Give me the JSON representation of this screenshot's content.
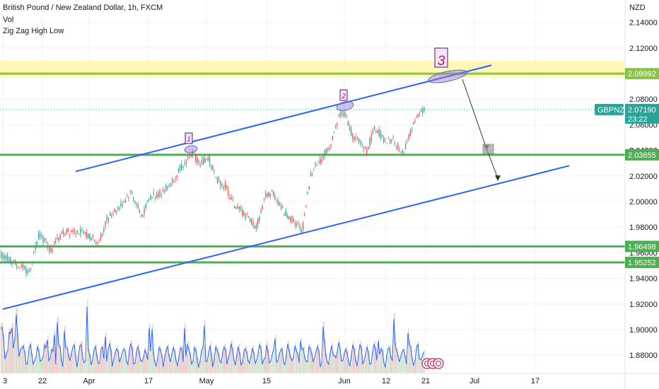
{
  "header": {
    "symbol_line": "British Pound / New Zealand Dollar, 1h, FXCM",
    "indicator_1": "Vol",
    "indicator_2": "Zig Zag High Low"
  },
  "chart_data": {
    "type": "candlestick",
    "title": "British Pound / New Zealand Dollar, 1h, FXCM",
    "currency": "NZD",
    "ylim": [
      1.868,
      2.158
    ],
    "y_ticks": [
      "2.14000",
      "2.12000",
      "2.10000",
      "2.08000",
      "2.06000",
      "2.04000",
      "2.02000",
      "2.00000",
      "1.98000",
      "1.96000",
      "1.94000",
      "1.92000",
      "1.90000",
      "1.88000"
    ],
    "x_ticks": [
      "3",
      "22",
      "Apr",
      "17",
      "May",
      "15",
      "Jun",
      "12",
      "21",
      "Jul",
      "17"
    ],
    "price_path": [
      {
        "x": 0,
        "y": 1.958
      },
      {
        "x": 22,
        "y": 1.952
      },
      {
        "x": 40,
        "y": 1.944
      },
      {
        "x": 55,
        "y": 1.976
      },
      {
        "x": 70,
        "y": 1.962
      },
      {
        "x": 88,
        "y": 1.975
      },
      {
        "x": 104,
        "y": 1.978
      },
      {
        "x": 122,
        "y": 1.974
      },
      {
        "x": 140,
        "y": 1.968
      },
      {
        "x": 150,
        "y": 1.986
      },
      {
        "x": 160,
        "y": 1.992
      },
      {
        "x": 172,
        "y": 1.998
      },
      {
        "x": 185,
        "y": 2.008
      },
      {
        "x": 200,
        "y": 1.988
      },
      {
        "x": 212,
        "y": 2.004
      },
      {
        "x": 225,
        "y": 2.006
      },
      {
        "x": 240,
        "y": 2.014
      },
      {
        "x": 255,
        "y": 2.026
      },
      {
        "x": 272,
        "y": 2.038
      },
      {
        "x": 282,
        "y": 2.03
      },
      {
        "x": 295,
        "y": 2.034
      },
      {
        "x": 305,
        "y": 2.018
      },
      {
        "x": 318,
        "y": 2.012
      },
      {
        "x": 330,
        "y": 1.998
      },
      {
        "x": 345,
        "y": 1.99
      },
      {
        "x": 362,
        "y": 1.98
      },
      {
        "x": 375,
        "y": 2.004
      },
      {
        "x": 385,
        "y": 2.008
      },
      {
        "x": 398,
        "y": 1.994
      },
      {
        "x": 412,
        "y": 1.986
      },
      {
        "x": 427,
        "y": 1.978
      },
      {
        "x": 432,
        "y": 1.996
      },
      {
        "x": 440,
        "y": 2.024
      },
      {
        "x": 455,
        "y": 2.034
      },
      {
        "x": 468,
        "y": 2.046
      },
      {
        "x": 478,
        "y": 2.066
      },
      {
        "x": 486,
        "y": 2.071
      },
      {
        "x": 497,
        "y": 2.052
      },
      {
        "x": 508,
        "y": 2.046
      },
      {
        "x": 518,
        "y": 2.04
      },
      {
        "x": 530,
        "y": 2.058
      },
      {
        "x": 545,
        "y": 2.046
      },
      {
        "x": 557,
        "y": 2.048
      },
      {
        "x": 568,
        "y": 2.036
      },
      {
        "x": 580,
        "y": 2.054
      },
      {
        "x": 590,
        "y": 2.066
      },
      {
        "x": 600,
        "y": 2.072
      }
    ],
    "horizontal_levels": [
      {
        "label": "2.09992",
        "value": 2.09992,
        "color": "#8bc34a",
        "zone": [
          2.097,
          2.11
        ]
      },
      {
        "label": "2.03655",
        "value": 2.03655,
        "color": "#4caf50"
      },
      {
        "label": "1.96498",
        "value": 1.96498,
        "color": "#4caf50"
      },
      {
        "label": "1.95252",
        "value": 1.95252,
        "color": "#4caf50"
      }
    ],
    "current_price": {
      "symbol": "GBPNZD",
      "value": "2.07190",
      "countdown": "23:22",
      "y": 2.0719
    },
    "partial_tick": "2.04000",
    "channel_lines": [
      {
        "from": {
          "x": 107,
          "y": 2.0235
        },
        "to": {
          "x": 695,
          "y": 2.1065
        }
      },
      {
        "from": {
          "x": 4,
          "y": 1.916
        },
        "to": {
          "x": 805,
          "y": 2.028
        }
      }
    ],
    "wave_labels": [
      "1",
      "2",
      "3"
    ],
    "annotations": {
      "projection": "arrow from 2.09992 down to 2.03655 and then toward the lower channel line"
    },
    "colors": {
      "up": "#26a69a",
      "down": "#ef5350",
      "volume": "#2962ff",
      "channel": "#2962ff",
      "zone": "#fff59d"
    }
  }
}
